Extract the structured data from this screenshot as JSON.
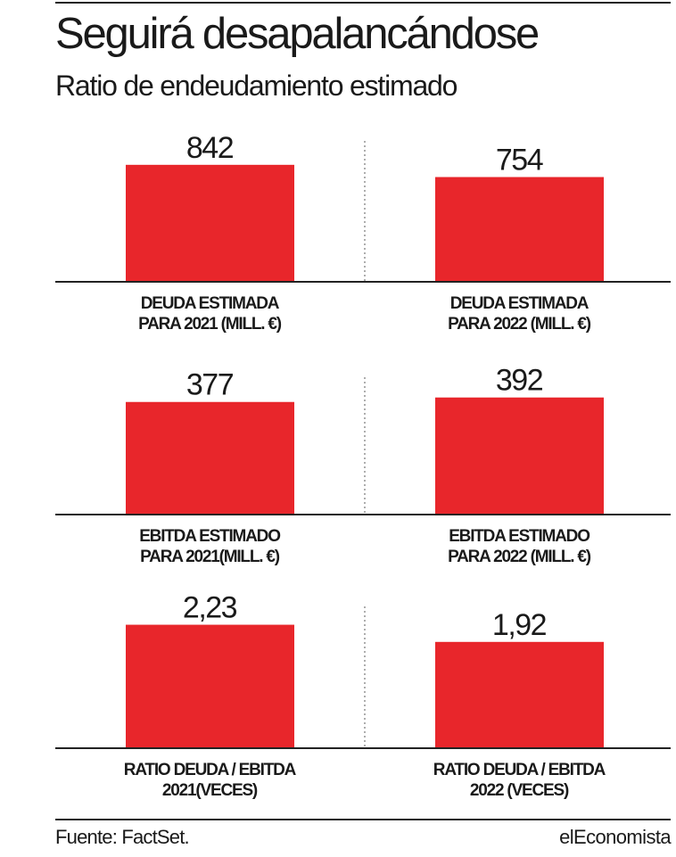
{
  "header": {
    "title": "Seguirá desapalancándose",
    "subtitle": "Ratio de endeudamiento estimado"
  },
  "footer": {
    "source": "Fuente: FactSet.",
    "brand": "elEconomista"
  },
  "colors": {
    "bar": "#e8262b",
    "rule": "#222222",
    "divider": "#777777"
  },
  "chart_data": [
    {
      "type": "bar",
      "categories": [
        "DEUDA ESTIMADA PARA 2021 (MILL. €)",
        "DEUDA ESTIMADA PARA 2022 (MILL. €)"
      ],
      "values": [
        842,
        754
      ],
      "value_labels": [
        "842",
        "754"
      ],
      "category_lines": [
        [
          "DEUDA ESTIMADA",
          "PARA 2021 (MILL. €)"
        ],
        [
          "DEUDA ESTIMADA",
          "PARA 2022 (MILL. €)"
        ]
      ],
      "ylim": [
        0,
        950
      ]
    },
    {
      "type": "bar",
      "categories": [
        "EBITDA ESTIMADO PARA 2021(MILL. €)",
        "EBITDA ESTIMADO PARA 2022 (MILL. €)"
      ],
      "values": [
        377,
        392
      ],
      "value_labels": [
        "377",
        "392"
      ],
      "category_lines": [
        [
          "EBITDA ESTIMADO",
          "PARA 2021(MILL. €)"
        ],
        [
          "EBITDA ESTIMADO",
          "PARA 2022 (MILL. €)"
        ]
      ],
      "ylim": [
        0,
        430
      ]
    },
    {
      "type": "bar",
      "categories": [
        "RATIO DEUDA / EBITDA 2021(VECES)",
        "RATIO DEUDA / EBITDA 2022 (VECES)"
      ],
      "values": [
        2.23,
        1.92
      ],
      "value_labels": [
        "2,23",
        "1,92"
      ],
      "category_lines": [
        [
          "RATIO DEUDA / EBITDA",
          "2021(VECES)"
        ],
        [
          "RATIO DEUDA / EBITDA",
          "2022 (VECES)"
        ]
      ],
      "ylim": [
        0,
        2.4
      ]
    }
  ]
}
